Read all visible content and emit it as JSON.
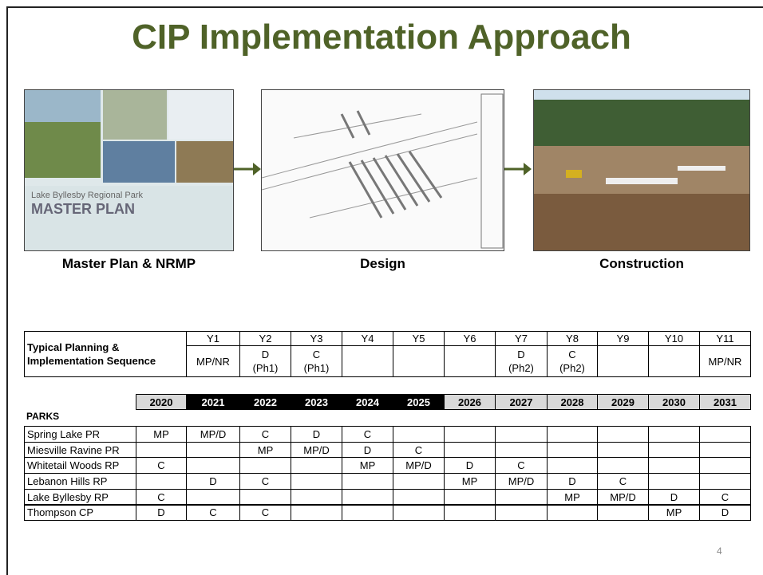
{
  "title": "CIP Implementation Approach",
  "images": [
    {
      "caption": "Master Plan & NRMP",
      "texts": [
        "Lake Byllesby Regional Park",
        "MASTER PLAN"
      ]
    },
    {
      "caption": "Design"
    },
    {
      "caption": "Construction"
    }
  ],
  "sequence_table": {
    "label": "Typical Planning & Implementation Sequence",
    "headers": [
      "Y1",
      "Y2",
      "Y3",
      "Y4",
      "Y5",
      "Y6",
      "Y7",
      "Y8",
      "Y9",
      "Y10",
      "Y11"
    ],
    "values": [
      "MP/NR",
      "D\n(Ph1)",
      "C\n(Ph1)",
      null,
      null,
      null,
      "D\n(Ph2)",
      "C\n(Ph2)",
      null,
      null,
      "MP/NR"
    ]
  },
  "parks_table": {
    "years": [
      "2020",
      "2021",
      "2022",
      "2023",
      "2024",
      "2025",
      "2026",
      "2027",
      "2028",
      "2029",
      "2030",
      "2031"
    ],
    "section": "PARKS",
    "rows": [
      {
        "name": "Spring Lake PR",
        "cells": [
          "MP",
          "MP/D",
          "C",
          "D",
          "C",
          null,
          null,
          null,
          null,
          null,
          null,
          null
        ]
      },
      {
        "name": "Miesville Ravine PR",
        "cells": [
          null,
          null,
          "MP",
          "MP/D",
          "D",
          "C",
          null,
          null,
          null,
          null,
          null,
          null
        ]
      },
      {
        "name": "Whitetail Woods RP",
        "cells": [
          "C",
          null,
          null,
          null,
          "MP",
          "MP/D",
          "D",
          "C",
          null,
          null,
          null,
          null
        ]
      },
      {
        "name": "Lebanon Hills RP",
        "cells": [
          null,
          "D",
          "C",
          null,
          null,
          null,
          "MP",
          "MP/D",
          "D",
          "C",
          null,
          null
        ]
      },
      {
        "name": "Lake Byllesby RP",
        "cells": [
          "C",
          null,
          null,
          null,
          null,
          null,
          null,
          null,
          "MP",
          "MP/D",
          "D",
          "C"
        ]
      },
      {
        "name": "Thompson CP",
        "cells": [
          "D",
          "C",
          "C",
          null,
          null,
          null,
          null,
          null,
          null,
          null,
          "MP",
          "D"
        ]
      }
    ]
  },
  "page_number": "4"
}
